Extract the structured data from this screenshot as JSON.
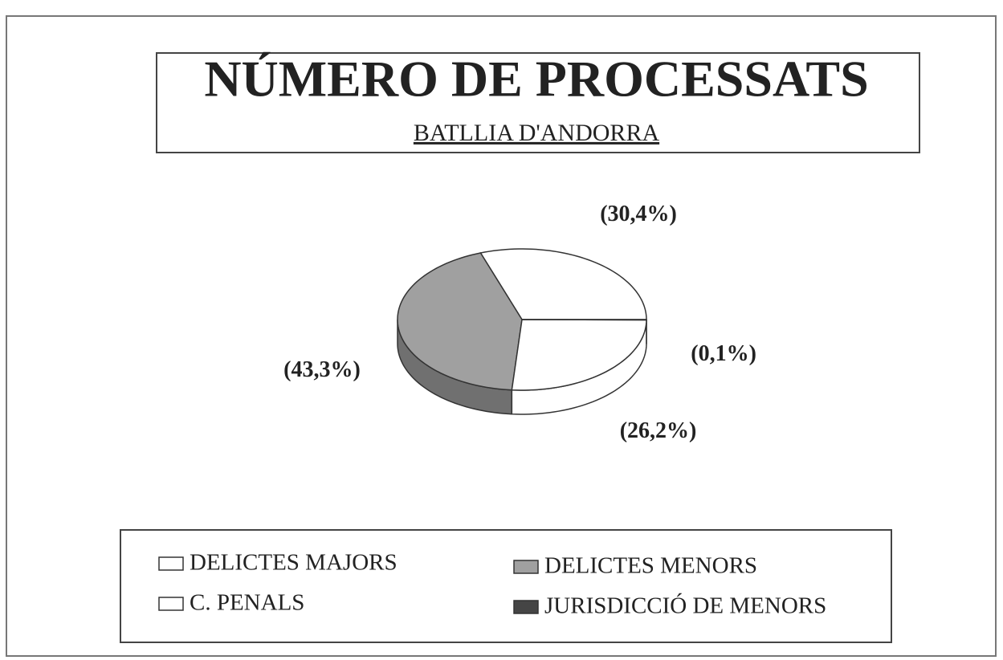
{
  "chart_data": {
    "type": "pie",
    "title": "NÚMERO DE PROCESSATS",
    "subtitle": "BATLLIA D'ANDORRA",
    "categories": [
      "DELICTES MAJORS",
      "DELICTES MENORS",
      "C. PENALS",
      "JURISDICCIÓ DE MENORS"
    ],
    "values": [
      30.4,
      43.3,
      26.2,
      0.1
    ],
    "value_labels": [
      "(30,4%)",
      "(43,3%)",
      "(26,2%)",
      "(0,1%)"
    ],
    "colors": [
      "#ffffff",
      "#a0a0a0",
      "#ffffff",
      "#454545"
    ]
  }
}
